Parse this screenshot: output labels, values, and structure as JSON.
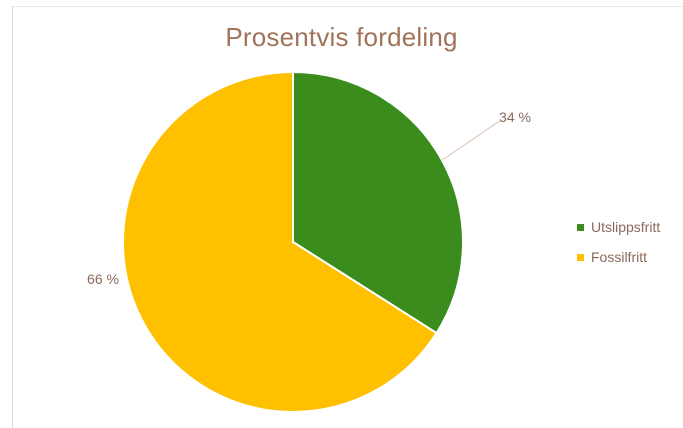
{
  "chart_data": {
    "type": "pie",
    "title": "Prosentvis fordeling",
    "start_angle_deg": 0,
    "direction": "clockwise",
    "slices": [
      {
        "label": "Utslippsfritt",
        "value": 34,
        "value_label": "34 %",
        "color": "#3a8d1c"
      },
      {
        "label": "Fossilfritt",
        "value": 66,
        "value_label": "66 %",
        "color": "#ffc000"
      }
    ],
    "legend_position": "right"
  },
  "colors": {
    "title": "#a0735a",
    "label_text": "#8a6a5a",
    "leader_line": "#d9c0b2",
    "slice_border": "#ffffff"
  }
}
